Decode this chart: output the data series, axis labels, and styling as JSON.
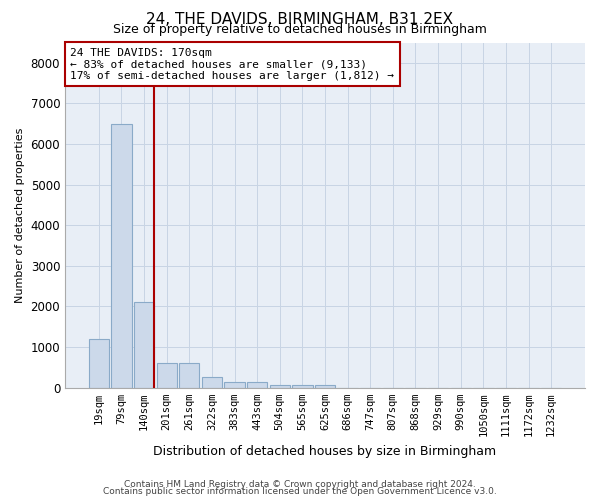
{
  "title": "24, THE DAVIDS, BIRMINGHAM, B31 2EX",
  "subtitle": "Size of property relative to detached houses in Birmingham",
  "xlabel": "Distribution of detached houses by size in Birmingham",
  "ylabel": "Number of detached properties",
  "bar_categories": [
    "19sqm",
    "79sqm",
    "140sqm",
    "201sqm",
    "261sqm",
    "322sqm",
    "383sqm",
    "443sqm",
    "504sqm",
    "565sqm",
    "625sqm",
    "686sqm",
    "747sqm",
    "807sqm",
    "868sqm",
    "929sqm",
    "990sqm",
    "1050sqm",
    "1111sqm",
    "1172sqm",
    "1232sqm"
  ],
  "bar_heights": [
    1200,
    6500,
    2100,
    600,
    600,
    250,
    130,
    130,
    60,
    60,
    60,
    0,
    0,
    0,
    0,
    0,
    0,
    0,
    0,
    0,
    0
  ],
  "bar_color": "#ccd9ea",
  "bar_edgecolor": "#8aaac8",
  "ylim": [
    0,
    8500
  ],
  "yticks": [
    0,
    1000,
    2000,
    3000,
    4000,
    5000,
    6000,
    7000,
    8000
  ],
  "property_line_color": "#aa0000",
  "annotation_text": "24 THE DAVIDS: 170sqm\n← 83% of detached houses are smaller (9,133)\n17% of semi-detached houses are larger (1,812) →",
  "annotation_box_facecolor": "#ffffff",
  "annotation_border_color": "#aa0000",
  "footer_line1": "Contains HM Land Registry data © Crown copyright and database right 2024.",
  "footer_line2": "Contains public sector information licensed under the Open Government Licence v3.0.",
  "grid_color": "#c8d4e4",
  "background_color": "#e8eef6",
  "title_fontsize": 11,
  "subtitle_fontsize": 9,
  "ylabel_fontsize": 8,
  "xlabel_fontsize": 9
}
